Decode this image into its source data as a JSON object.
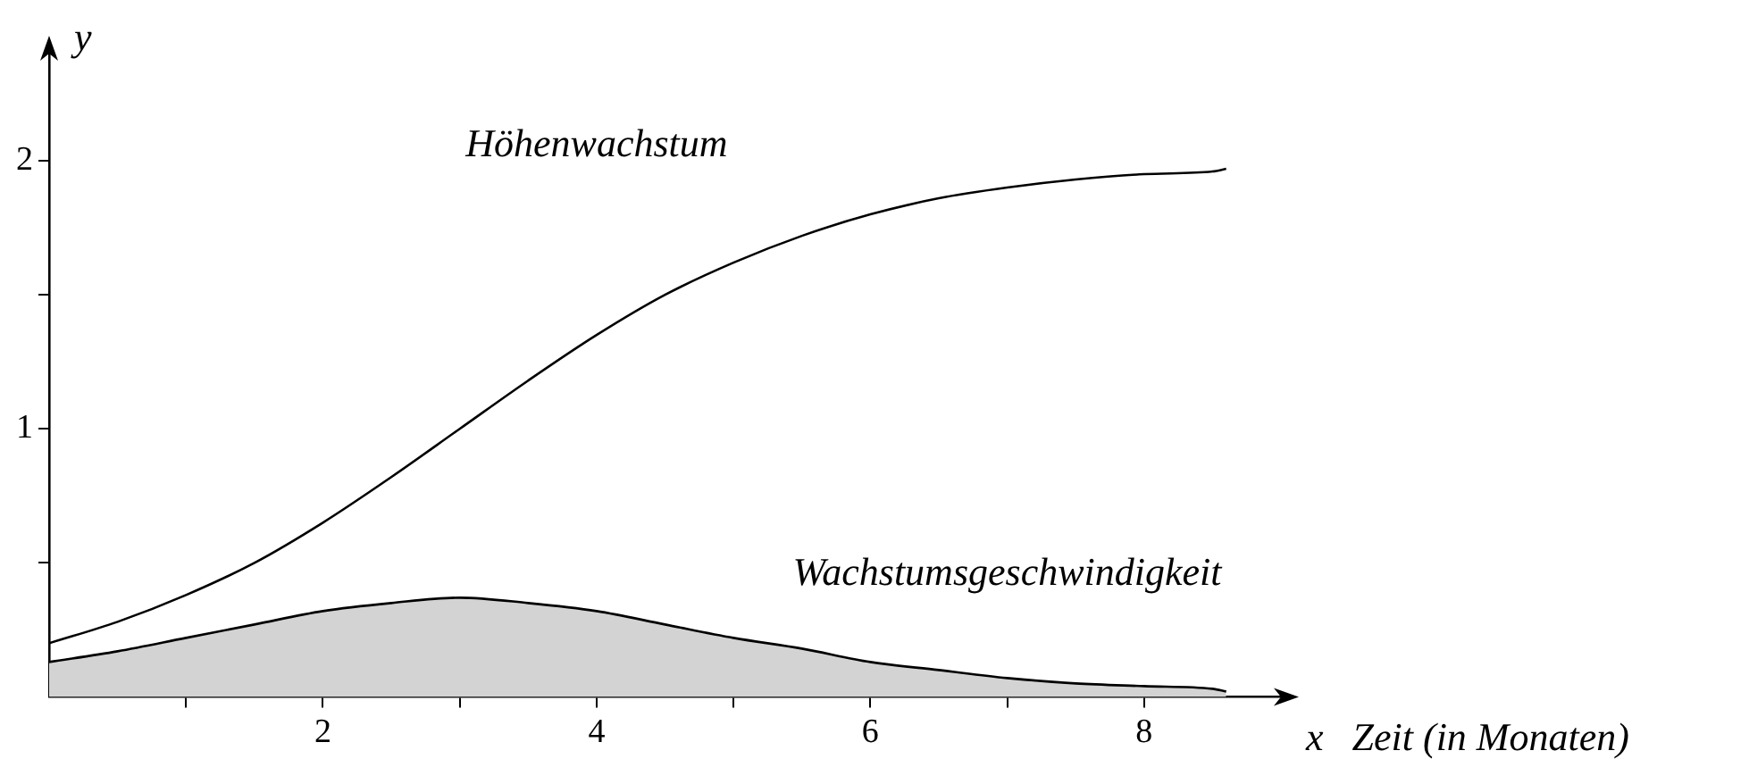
{
  "chart_data": {
    "type": "line",
    "xlabel": "x",
    "ylabel": "y",
    "annotations": [
      "Zeit (in Monaten)"
    ],
    "x": [
      0,
      0.5,
      1,
      1.5,
      2,
      2.5,
      3,
      3.5,
      4,
      4.5,
      5,
      5.5,
      6,
      6.5,
      7,
      7.5,
      8,
      8.5,
      8.6
    ],
    "series": [
      {
        "name": "Höhenwachstum",
        "type": "line",
        "color": "#000000",
        "values": [
          0.2,
          0.28,
          0.38,
          0.5,
          0.65,
          0.82,
          1.0,
          1.18,
          1.35,
          1.5,
          1.62,
          1.72,
          1.8,
          1.86,
          1.9,
          1.93,
          1.95,
          1.96,
          1.97
        ]
      },
      {
        "name": "Wachstumsgeschwindigkeit",
        "type": "area",
        "color": "#d3d3d3",
        "values": [
          0.13,
          0.17,
          0.22,
          0.27,
          0.32,
          0.35,
          0.37,
          0.35,
          0.32,
          0.27,
          0.22,
          0.18,
          0.13,
          0.1,
          0.07,
          0.05,
          0.04,
          0.03,
          0.02
        ]
      }
    ],
    "xlim": [
      0,
      9
    ],
    "ylim": [
      0,
      2.4
    ],
    "xticks": [
      {
        "value": 1,
        "label": null
      },
      2,
      {
        "value": 3,
        "label": null
      },
      4,
      {
        "value": 5,
        "label": null
      },
      6,
      {
        "value": 7,
        "label": null
      },
      8
    ],
    "yticks": [
      {
        "value": 0.5,
        "label": null
      },
      1,
      {
        "value": 1.5,
        "label": null
      },
      2
    ],
    "marker": "none",
    "line_style": "solid"
  }
}
